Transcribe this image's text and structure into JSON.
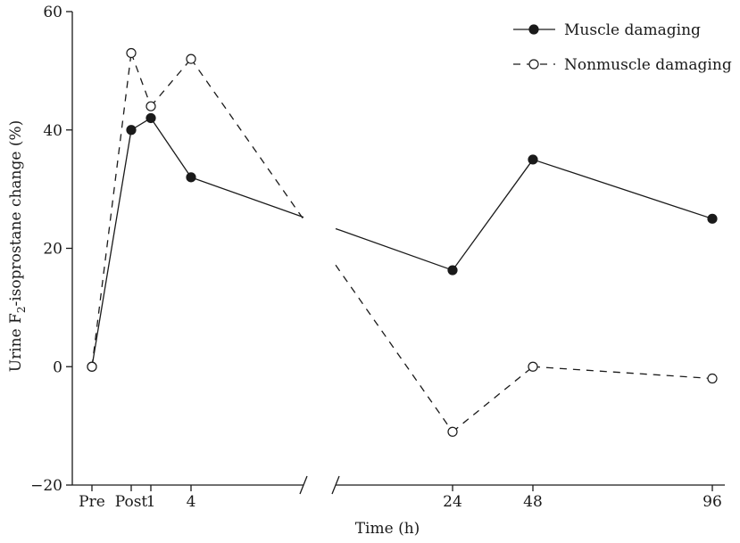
{
  "chart_data": {
    "type": "line",
    "xlabel": "Time (h)",
    "ylabel": {
      "prefix": "Urine F",
      "subscript": "2",
      "suffix": "-isoprostane change (%)"
    },
    "ylim": [
      -20,
      60
    ],
    "yticks": [
      -20,
      0,
      20,
      40,
      60
    ],
    "xticks": [
      "Pre",
      "Post",
      "1",
      "4",
      "24",
      "48",
      "96"
    ],
    "x_axis_break": true,
    "legend_position": "top-right",
    "series": [
      {
        "name": "Muscle damaging",
        "line_style": "solid",
        "marker": "filled-circle",
        "points": [
          {
            "x": "Pre",
            "y": 0
          },
          {
            "x": "Post",
            "y": 40
          },
          {
            "x": "1",
            "y": 42
          },
          {
            "x": "4",
            "y": 32
          },
          {
            "x": "24",
            "y": 16.3
          },
          {
            "x": "48",
            "y": 35
          },
          {
            "x": "96",
            "y": 25
          }
        ]
      },
      {
        "name": "Nonmuscle damaging",
        "line_style": "dashed",
        "marker": "open-circle",
        "points": [
          {
            "x": "Pre",
            "y": 0
          },
          {
            "x": "Post",
            "y": 53
          },
          {
            "x": "1",
            "y": 44
          },
          {
            "x": "4",
            "y": 52
          },
          {
            "x": "24",
            "y": -11
          },
          {
            "x": "48",
            "y": 0
          },
          {
            "x": "96",
            "y": -2
          }
        ]
      }
    ]
  }
}
